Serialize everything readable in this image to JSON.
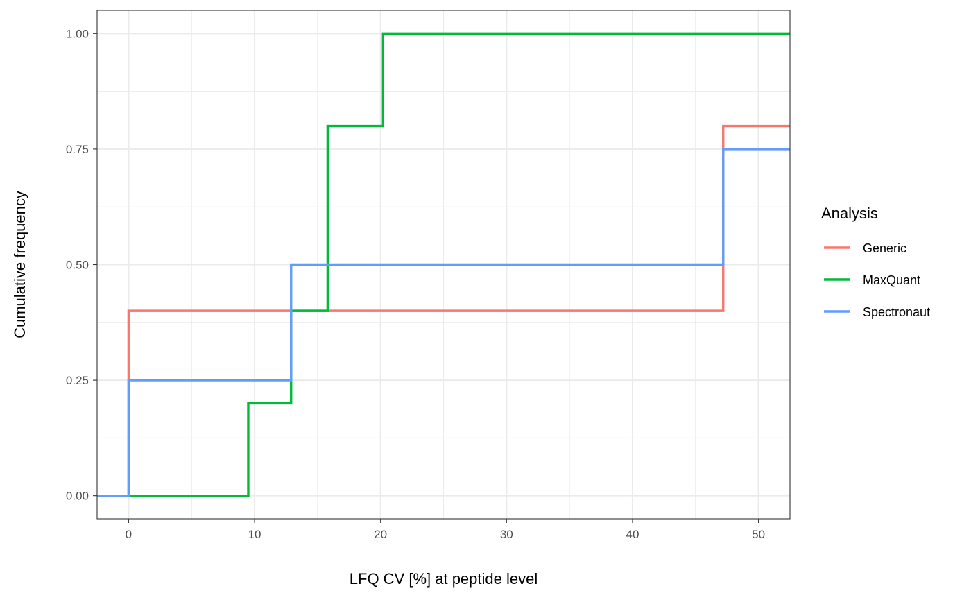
{
  "chart_data": {
    "type": "line",
    "step": true,
    "title": "",
    "xlabel": "LFQ CV [%] at peptide level",
    "ylabel": "Cumulative frequency",
    "xlim": [
      -2.5,
      52.5
    ],
    "ylim": [
      -0.05,
      1.05
    ],
    "x_ticks": [
      0,
      10,
      20,
      30,
      40,
      50
    ],
    "x_tick_labels": [
      "0",
      "10",
      "20",
      "30",
      "40",
      "50"
    ],
    "y_ticks": [
      0,
      0.25,
      0.5,
      0.75,
      1
    ],
    "y_tick_labels": [
      "0.00",
      "0.25",
      "0.50",
      "0.75",
      "1.00"
    ],
    "grid": true,
    "legend": {
      "title": "Analysis",
      "position": "right"
    },
    "series": [
      {
        "name": "Generic",
        "color": "#F8766D",
        "x": [
          -2.5,
          0,
          47.2,
          52.5
        ],
        "y": [
          0,
          0.4,
          0.8,
          0.8
        ]
      },
      {
        "name": "MaxQuant",
        "color": "#00BA38",
        "x": [
          -2.5,
          9.5,
          12.9,
          15.8,
          20.2,
          52.5
        ],
        "y": [
          0,
          0.2,
          0.4,
          0.8,
          1.0,
          1.0
        ]
      },
      {
        "name": "Spectronaut",
        "color": "#619CFF",
        "x": [
          -2.5,
          0,
          12.9,
          47.2,
          52.5
        ],
        "y": [
          0,
          0.25,
          0.5,
          0.75,
          0.75
        ]
      }
    ]
  }
}
